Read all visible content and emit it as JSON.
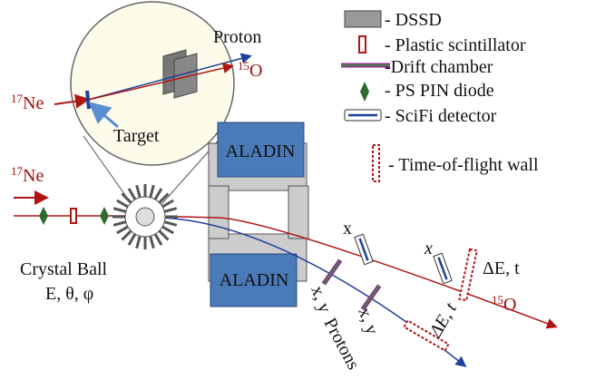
{
  "zoom": {
    "proton": "Proton",
    "product": {
      "mass": "15",
      "symbol": "O"
    },
    "beam": {
      "mass": "17",
      "symbol": "Ne"
    },
    "target": "Target"
  },
  "legend": {
    "dssd": "- DSSD",
    "plastic": "- Plastic scintillator",
    "drift": "-Drift chamber",
    "pin": "- PS PIN diode",
    "scifi": "- SciFi detector",
    "tof": "- Time-of-flight wall"
  },
  "setup": {
    "beam": {
      "mass": "17",
      "symbol": "Ne"
    },
    "magnet_top": "ALADIN",
    "magnet_bottom": "ALADIN",
    "crystal_ball": "Crystal Ball",
    "crystal_ball_quantities": "E, θ, φ",
    "scifi_1": "x",
    "scifi_2": "x",
    "tof_wall": "ΔE, t",
    "fragment": {
      "mass": "15",
      "symbol": "O"
    },
    "drift_1": "x, y",
    "drift_2": "x, y",
    "protons": "Protons",
    "proton_tof": "ΔE, t"
  }
}
